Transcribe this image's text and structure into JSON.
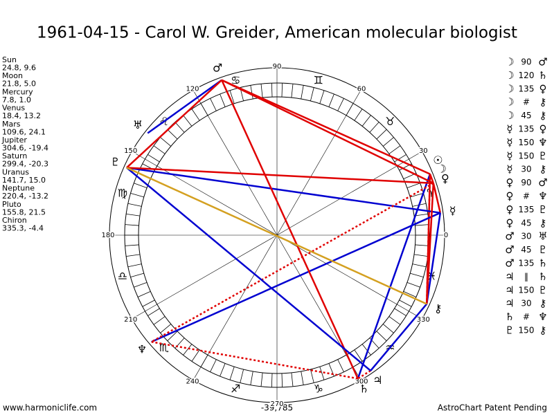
{
  "title": "1961-04-15 - Carol W. Greider, American molecular biologist",
  "planets": [
    {
      "name": "Sun",
      "coords": "24.8, 9.6",
      "glyph": "☉"
    },
    {
      "name": "Moon",
      "coords": "21.8, 5.0",
      "glyph": "☽"
    },
    {
      "name": "Mercury",
      "coords": "7.8, 1.0",
      "glyph": "☿"
    },
    {
      "name": "Venus",
      "coords": "18.4, 13.2",
      "glyph": "♀"
    },
    {
      "name": "Mars",
      "coords": "109.6, 24.1",
      "glyph": "♂"
    },
    {
      "name": "Jupiter",
      "coords": "304.6, -19.4",
      "glyph": "♃"
    },
    {
      "name": "Saturn",
      "coords": "299.4, -20.3",
      "glyph": "♄"
    },
    {
      "name": "Uranus",
      "coords": "141.7, 15.0",
      "glyph": "♅"
    },
    {
      "name": "Neptune",
      "coords": "220.4, -13.2",
      "glyph": "♆"
    },
    {
      "name": "Pluto",
      "coords": "155.8, 21.5",
      "glyph": "♇"
    },
    {
      "name": "Chiron",
      "coords": "335.3, -4.4",
      "glyph": "⚷"
    }
  ],
  "aspects": [
    {
      "from": "☽",
      "angle": "90",
      "to": "♂",
      "color": "#e00000"
    },
    {
      "from": "☽",
      "angle": "120",
      "to": "♄",
      "color": "#0000d0"
    },
    {
      "from": "☽",
      "angle": "135",
      "to": "♀",
      "color": "#e00000"
    },
    {
      "from": "☽",
      "angle": "#",
      "to": "⚷",
      "color": "#e00000",
      "dotted": true
    },
    {
      "from": "☽",
      "angle": "45",
      "to": "⚷",
      "color": "#e00000"
    },
    {
      "from": "☿",
      "angle": "135",
      "to": "♀",
      "color": "#e00000"
    },
    {
      "from": "☿",
      "angle": "150",
      "to": "♆",
      "color": "#0000d0"
    },
    {
      "from": "☿",
      "angle": "150",
      "to": "♇",
      "color": "#0000d0"
    },
    {
      "from": "☿",
      "angle": "30",
      "to": "⚷",
      "color": "#0000d0"
    },
    {
      "from": "♀",
      "angle": "90",
      "to": "♂",
      "color": "#e00000"
    },
    {
      "from": "♀",
      "angle": "#",
      "to": "♆",
      "color": "#e00000",
      "dotted": true
    },
    {
      "from": "♀",
      "angle": "135",
      "to": "♇",
      "color": "#e00000"
    },
    {
      "from": "♀",
      "angle": "45",
      "to": "⚷",
      "color": "#e00000"
    },
    {
      "from": "♂",
      "angle": "30",
      "to": "♅",
      "color": "#0000d0"
    },
    {
      "from": "♂",
      "angle": "45",
      "to": "♇",
      "color": "#e00000"
    },
    {
      "from": "♂",
      "angle": "135",
      "to": "♄",
      "color": "#e00000"
    },
    {
      "from": "♃",
      "angle": "‖",
      "to": "♄",
      "color": "#e00000",
      "dotted": true
    },
    {
      "from": "♃",
      "angle": "150",
      "to": "♇",
      "color": "#0000d0"
    },
    {
      "from": "♃",
      "angle": "30",
      "to": "⚷",
      "color": "#0000d0"
    },
    {
      "from": "♄",
      "angle": "#",
      "to": "♆",
      "color": "#e00000",
      "dotted": true
    },
    {
      "from": "♇",
      "angle": "150",
      "to": "⚷",
      "color": "#d4a020"
    }
  ],
  "degree_labels": [
    0,
    30,
    60,
    90,
    120,
    150,
    180,
    210,
    240,
    270,
    300,
    330
  ],
  "signs": [
    "♈",
    "♉",
    "♊",
    "♋",
    "♌",
    "♍",
    "♎",
    "♏",
    "♐",
    "♑",
    "♒",
    "♓"
  ],
  "footer": {
    "left": "www.harmoniclife.com",
    "center": "-39,785",
    "right": "AstroChart Patent Pending"
  }
}
